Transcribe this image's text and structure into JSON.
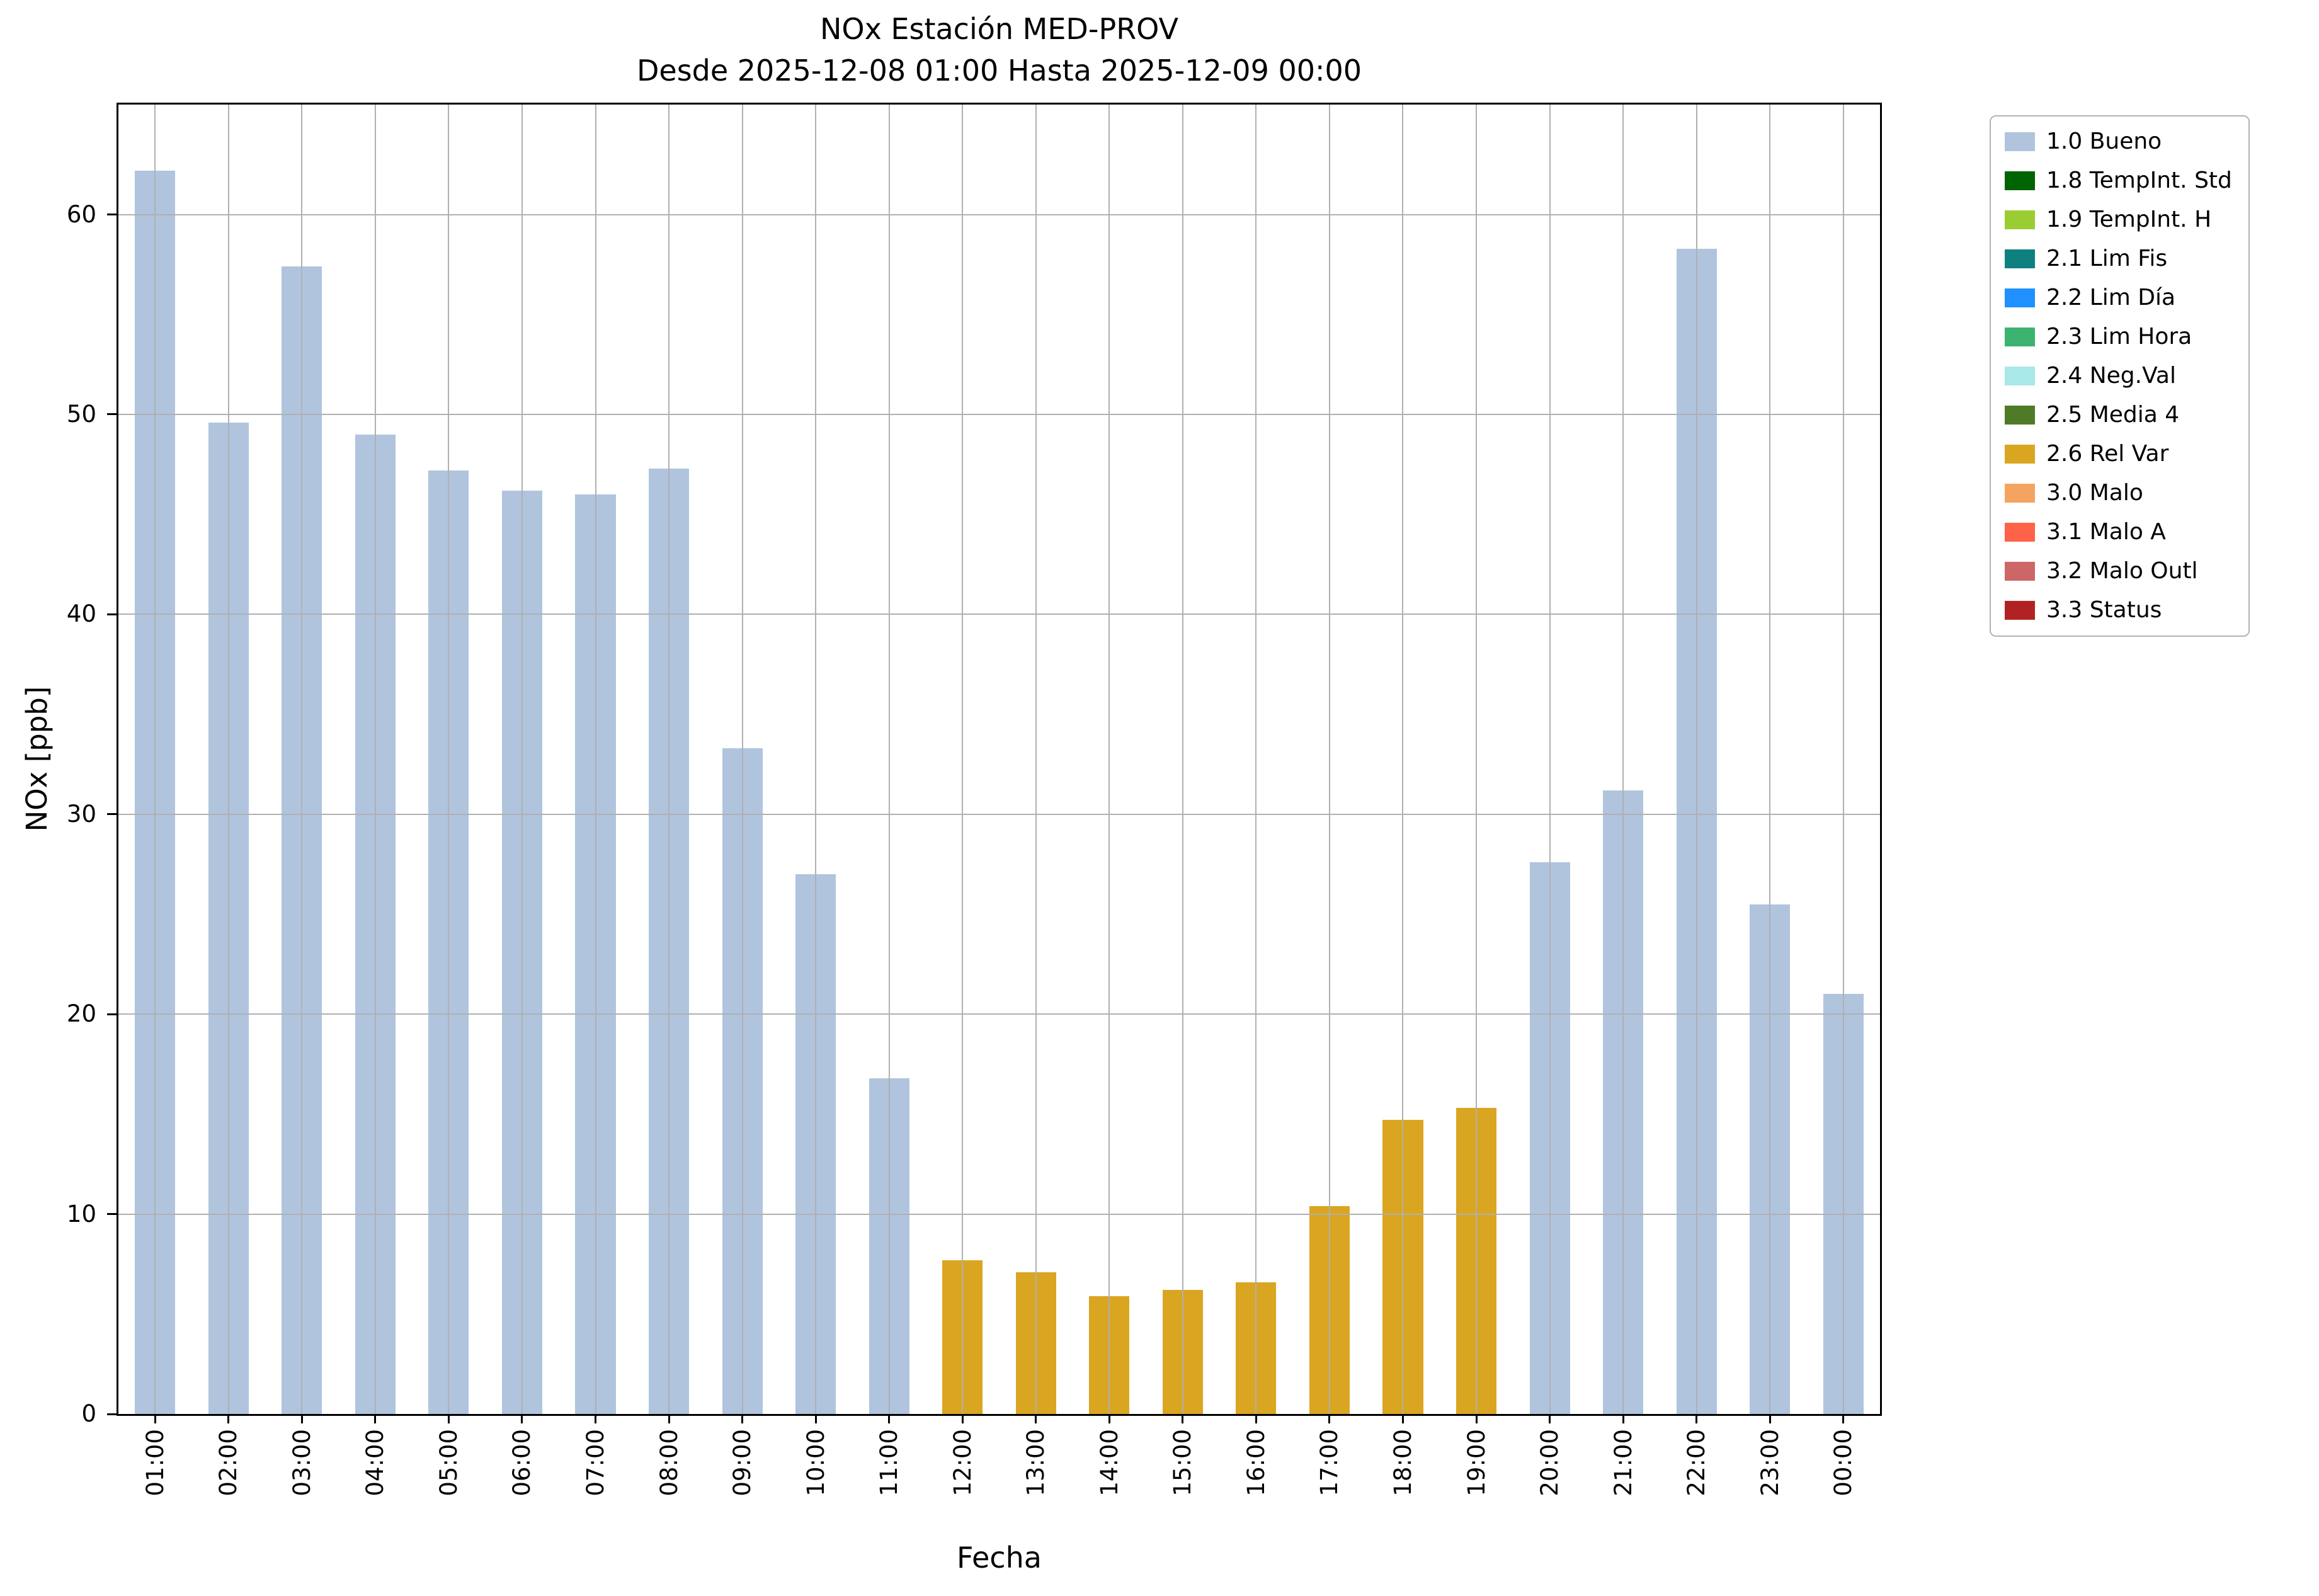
{
  "chart_data": {
    "type": "bar",
    "title": "NOx Estación MED-PROV",
    "subtitle": "Desde 2025-12-08 01:00 Hasta 2025-12-09 00:00",
    "xlabel": "Fecha",
    "ylabel": "NOx [ppb]",
    "ylim": [
      0,
      65.5
    ],
    "yticks": [
      0,
      10,
      20,
      30,
      40,
      50,
      60
    ],
    "grid": true,
    "grid_color": "#b0b0b0",
    "bar_width_ratio": 0.55,
    "categories": [
      "01:00",
      "02:00",
      "03:00",
      "04:00",
      "05:00",
      "06:00",
      "07:00",
      "08:00",
      "09:00",
      "10:00",
      "11:00",
      "12:00",
      "13:00",
      "14:00",
      "15:00",
      "16:00",
      "17:00",
      "18:00",
      "19:00",
      "20:00",
      "21:00",
      "22:00",
      "23:00",
      "00:00"
    ],
    "values": [
      62.2,
      49.6,
      57.4,
      49.0,
      47.2,
      46.2,
      46.0,
      47.3,
      33.3,
      27.0,
      16.8,
      7.7,
      7.1,
      5.9,
      6.2,
      6.6,
      10.4,
      14.7,
      15.3,
      27.6,
      31.2,
      58.3,
      25.5,
      21.0
    ],
    "statuses": [
      "1.0 Bueno",
      "1.0 Bueno",
      "1.0 Bueno",
      "1.0 Bueno",
      "1.0 Bueno",
      "1.0 Bueno",
      "1.0 Bueno",
      "1.0 Bueno",
      "1.0 Bueno",
      "1.0 Bueno",
      "1.0 Bueno",
      "2.6 Rel Var",
      "2.6 Rel Var",
      "2.6 Rel Var",
      "2.6 Rel Var",
      "2.6 Rel Var",
      "2.6 Rel Var",
      "2.6 Rel Var",
      "2.6 Rel Var",
      "1.0 Bueno",
      "1.0 Bueno",
      "1.0 Bueno",
      "1.0 Bueno",
      "1.0 Bueno"
    ],
    "status_colors": {
      "1.0 Bueno": "#b0c4de",
      "2.6 Rel Var": "#daa520"
    },
    "legend": {
      "position": "top-right",
      "entries": [
        {
          "label": "1.0 Bueno",
          "color": "#b0c4de"
        },
        {
          "label": "1.8 TempInt. Std",
          "color": "#006400"
        },
        {
          "label": "1.9 TempInt. H",
          "color": "#9acd32"
        },
        {
          "label": "2.1 Lim Fis",
          "color": "#0f8080"
        },
        {
          "label": "2.2 Lim Día",
          "color": "#1e90ff"
        },
        {
          "label": "2.3 Lim Hora",
          "color": "#3cb371"
        },
        {
          "label": "2.4 Neg.Val",
          "color": "#a8e8e8"
        },
        {
          "label": "2.5 Media 4",
          "color": "#4f7a28"
        },
        {
          "label": "2.6 Rel Var",
          "color": "#daa520"
        },
        {
          "label": "3.0 Malo",
          "color": "#f4a460"
        },
        {
          "label": "3.1 Malo A",
          "color": "#ff6347"
        },
        {
          "label": "3.2 Malo Outl",
          "color": "#cd6666"
        },
        {
          "label": "3.3 Status",
          "color": "#b22222"
        }
      ]
    }
  }
}
